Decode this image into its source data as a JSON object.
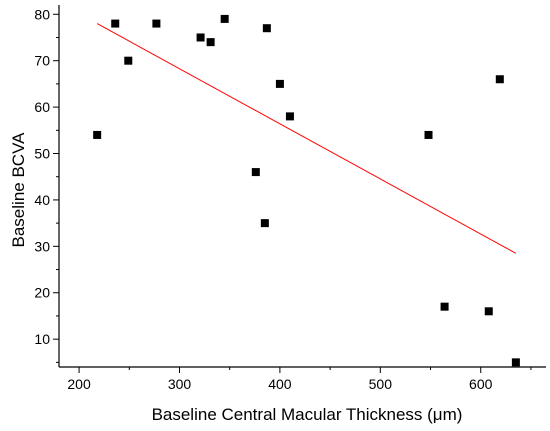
{
  "chart_data": {
    "type": "scatter",
    "title": "",
    "xlabel": "Baseline Central Macular Thickness (μm)",
    "ylabel": "Baseline BCVA",
    "xlim": [
      180,
      665
    ],
    "ylim": [
      4,
      82
    ],
    "xticks": [
      200,
      300,
      400,
      500,
      600
    ],
    "yticks": [
      10,
      20,
      30,
      40,
      50,
      60,
      70,
      80
    ],
    "grid": false,
    "marker_color": "#000000",
    "points": [
      {
        "x": 218,
        "y": 54
      },
      {
        "x": 236,
        "y": 78
      },
      {
        "x": 249,
        "y": 70
      },
      {
        "x": 277,
        "y": 78
      },
      {
        "x": 321,
        "y": 75
      },
      {
        "x": 331,
        "y": 74
      },
      {
        "x": 345,
        "y": 79
      },
      {
        "x": 376,
        "y": 46
      },
      {
        "x": 385,
        "y": 35
      },
      {
        "x": 387,
        "y": 77
      },
      {
        "x": 400,
        "y": 65
      },
      {
        "x": 410,
        "y": 58
      },
      {
        "x": 548,
        "y": 54
      },
      {
        "x": 564,
        "y": 17
      },
      {
        "x": 608,
        "y": 16
      },
      {
        "x": 619,
        "y": 66
      },
      {
        "x": 635,
        "y": 5
      }
    ],
    "fit_line": {
      "color": "#ff0000",
      "x": [
        218,
        635
      ],
      "y": [
        78,
        28.5
      ]
    }
  }
}
